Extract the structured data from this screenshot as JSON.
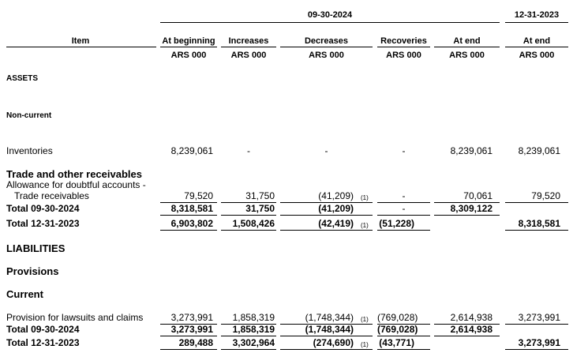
{
  "header": {
    "periods": [
      "09-30-2024",
      "12-31-2023"
    ],
    "item": "Item",
    "columns": [
      {
        "name": "At beginning",
        "unit": "ARS 000"
      },
      {
        "name": "Increases",
        "unit": "ARS 000"
      },
      {
        "name": "Decreases",
        "unit": "ARS 000"
      },
      {
        "name": "Recoveries",
        "unit": "ARS 000"
      },
      {
        "name": "At end",
        "unit": "ARS 000"
      },
      {
        "name": "At end",
        "unit": "ARS 000"
      }
    ]
  },
  "rows": [
    {
      "label": "ASSETS"
    },
    {
      "label": "Non-current"
    },
    {
      "label": "Inventories",
      "cells": [
        "8,239,061",
        "-",
        "-",
        "-",
        "8,239,061",
        "8,239,061"
      ]
    },
    {
      "label": "Trade and other receivables"
    },
    {
      "label": "Allowance for doubtful accounts -",
      "label2": "Trade receivables",
      "cells": [
        "79,520",
        "31,750",
        "(41,209)",
        "-",
        "70,061",
        "79,520"
      ],
      "notes": [
        null,
        null,
        "(1)",
        null,
        null,
        null
      ]
    },
    {
      "label": "Total 09-30-2024",
      "cells": [
        "8,318,581",
        "31,750",
        "(41,209)",
        "-",
        "8,309,122",
        null
      ]
    },
    {
      "label": "Total 12-31-2023",
      "cells": [
        "6,903,802",
        "1,508,426",
        "(42,419)",
        "(51,228)",
        null,
        "8,318,581"
      ],
      "notes": [
        null,
        null,
        "(1)",
        null,
        null,
        null
      ]
    },
    {
      "label": "LIABILITIES"
    },
    {
      "label": "Provisions"
    },
    {
      "label": "Current"
    },
    {
      "label": "Provision for lawsuits and claims",
      "cells": [
        "3,273,991",
        "1,858,319",
        "(1,748,344)",
        "(769,028)",
        "2,614,938",
        "3,273,991"
      ],
      "notes": [
        null,
        null,
        "(1)",
        null,
        null,
        null
      ]
    },
    {
      "label": "Total 09-30-2024",
      "cells": [
        "3,273,991",
        "1,858,319",
        "(1,748,344)",
        "(769,028)",
        "2,614,938",
        null
      ]
    },
    {
      "label": "Total 12-31-2023",
      "cells": [
        "289,488",
        "3,302,964",
        "(274,690)",
        "(43,771)",
        null,
        "3,273,991"
      ],
      "notes": [
        null,
        null,
        "(1)",
        null,
        null,
        null
      ]
    }
  ]
}
